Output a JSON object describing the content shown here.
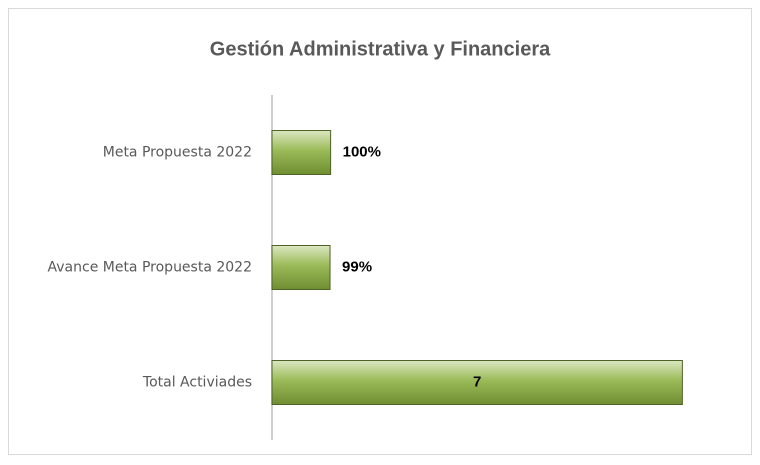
{
  "chart_data": {
    "type": "hbar",
    "title": "Gestión Administrativa y Financiera",
    "categories": [
      "Meta Propuesta 2022",
      "Avance  Meta Propuesta 2022",
      "Total Activiades"
    ],
    "values": [
      1,
      0.99,
      7
    ],
    "value_labels": [
      "100%",
      "99%",
      "7"
    ],
    "color": "#9bbb59",
    "xlim": [
      0,
      8
    ]
  }
}
